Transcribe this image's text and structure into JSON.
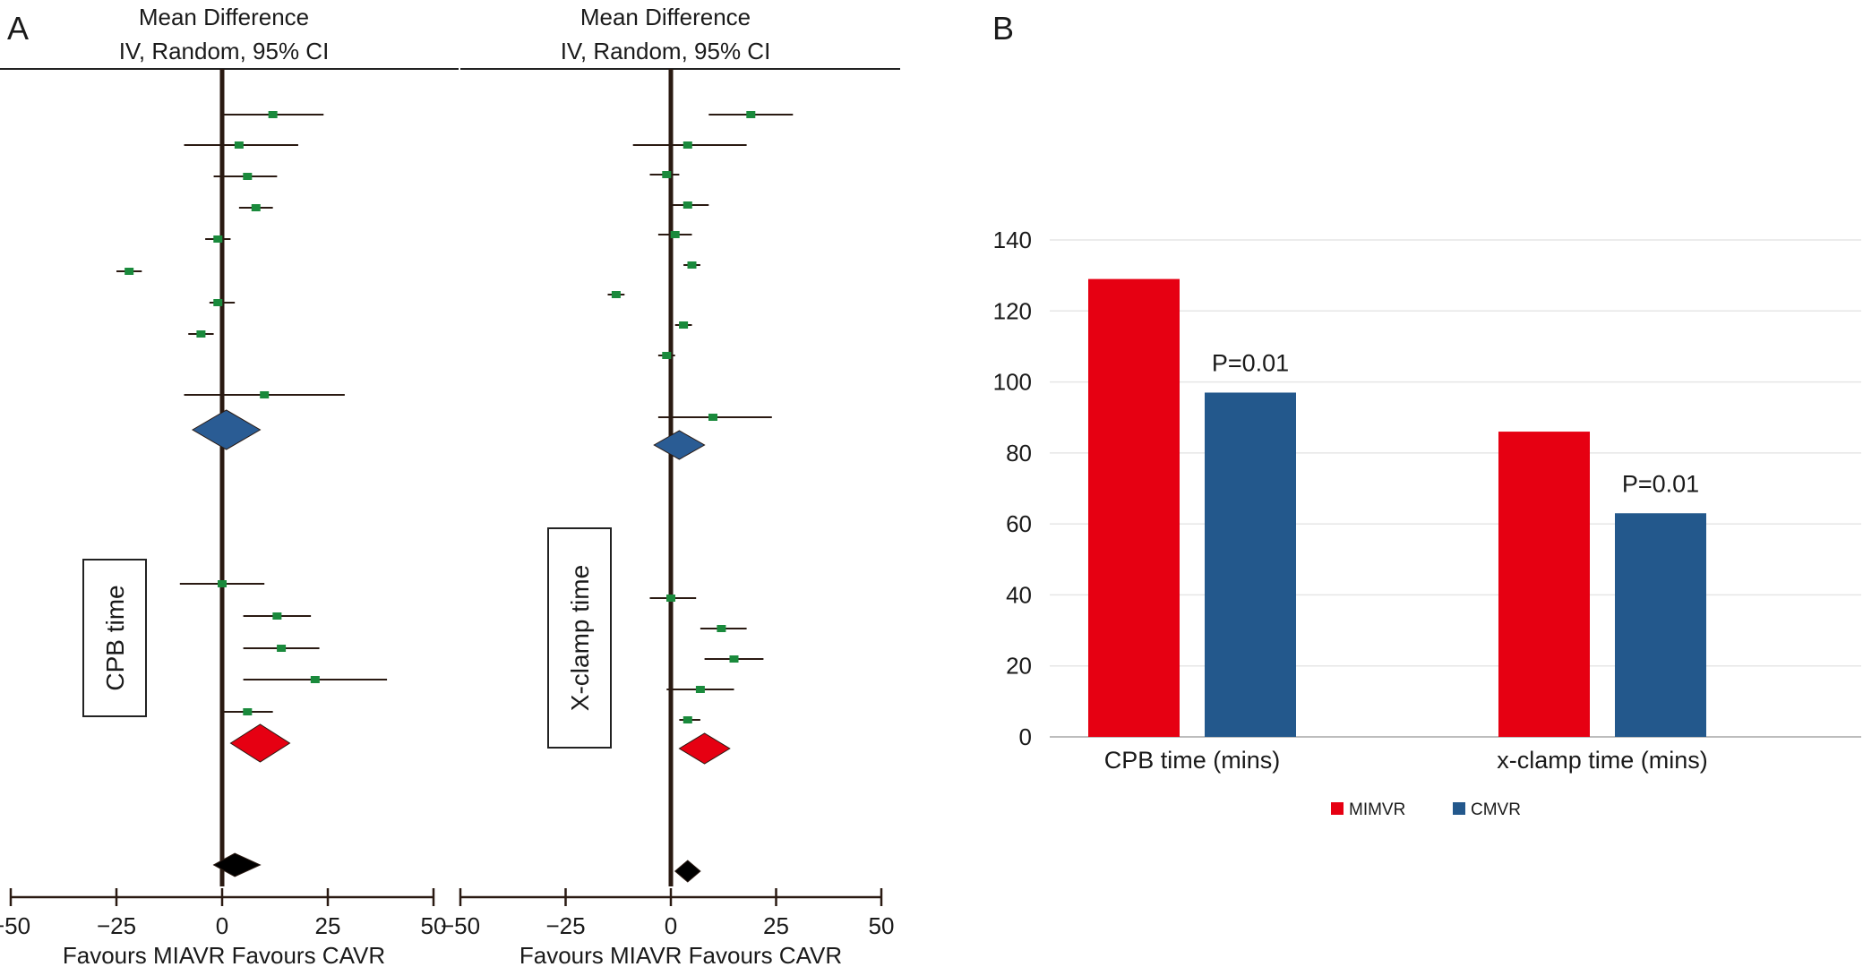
{
  "panel_a": {
    "label": "A",
    "title_line1": "Mean Difference",
    "title_line2": "IV, Random, 95% CI",
    "axis_label": "Favours MIAVR Favours CAVR",
    "colors": {
      "study": "#1a8a3c",
      "subgroup1": "#2a5c94",
      "subgroup2": "#e60012",
      "overall": "#000000"
    }
  },
  "panel_b": {
    "label": "B"
  },
  "chart_data": [
    {
      "type": "forest",
      "title": "Mean Difference IV, Random, 95% CI",
      "xlabel": "Favours MIAVR Favours CAVR",
      "xlim": [
        -50,
        50
      ],
      "xticks": [
        -50,
        -25,
        0,
        25,
        50
      ],
      "subgroup_label": "CPB time",
      "group1": [
        {
          "md": 12,
          "lo": 0,
          "hi": 24
        },
        {
          "md": 4,
          "lo": -9,
          "hi": 18
        },
        {
          "md": 6,
          "lo": -2,
          "hi": 13
        },
        {
          "md": 8,
          "lo": 4,
          "hi": 12
        },
        {
          "md": -1,
          "lo": -4,
          "hi": 2
        },
        {
          "md": -22,
          "lo": -25,
          "hi": -19
        },
        {
          "md": -1,
          "lo": -3,
          "hi": 3
        },
        {
          "md": -5,
          "lo": -8,
          "hi": -2
        },
        {
          "md": 10,
          "lo": -9,
          "hi": 29
        }
      ],
      "group1_pooled": {
        "md": 1,
        "lo": -7,
        "hi": 9
      },
      "group2": [
        {
          "md": 0,
          "lo": -10,
          "hi": 10
        },
        {
          "md": 13,
          "lo": 5,
          "hi": 21
        },
        {
          "md": 14,
          "lo": 5,
          "hi": 23
        },
        {
          "md": 22,
          "lo": 5,
          "hi": 39
        },
        {
          "md": 6,
          "lo": 0,
          "hi": 12
        }
      ],
      "group2_pooled": {
        "md": 9,
        "lo": 2,
        "hi": 16
      },
      "overall": {
        "md": 3,
        "lo": -2,
        "hi": 9
      }
    },
    {
      "type": "forest",
      "title": "Mean Difference IV, Random, 95% CI",
      "xlabel": "Favours MIAVR Favours CAVR",
      "xlim": [
        -50,
        50
      ],
      "xticks": [
        -50,
        -25,
        0,
        25,
        50
      ],
      "subgroup_label": "X-clamp time",
      "group1": [
        {
          "md": 19,
          "lo": 9,
          "hi": 29
        },
        {
          "md": 4,
          "lo": -9,
          "hi": 18
        },
        {
          "md": -1,
          "lo": -5,
          "hi": 2
        },
        {
          "md": 4,
          "lo": 0,
          "hi": 9
        },
        {
          "md": 1,
          "lo": -3,
          "hi": 5
        },
        {
          "md": 5,
          "lo": 3,
          "hi": 7
        },
        {
          "md": -13,
          "lo": -15,
          "hi": -11
        },
        {
          "md": 3,
          "lo": 1,
          "hi": 5
        },
        {
          "md": -1,
          "lo": -3,
          "hi": 1
        },
        {
          "md": 10,
          "lo": -3,
          "hi": 24
        }
      ],
      "group1_pooled": {
        "md": 2,
        "lo": -4,
        "hi": 8
      },
      "group2": [
        {
          "md": 0,
          "lo": -5,
          "hi": 6
        },
        {
          "md": 12,
          "lo": 7,
          "hi": 18
        },
        {
          "md": 15,
          "lo": 8,
          "hi": 22
        },
        {
          "md": 7,
          "lo": -1,
          "hi": 15
        },
        {
          "md": 4,
          "lo": 2,
          "hi": 7
        }
      ],
      "group2_pooled": {
        "md": 8,
        "lo": 2,
        "hi": 14
      },
      "overall": {
        "md": 4,
        "lo": 1,
        "hi": 7
      }
    },
    {
      "type": "bar",
      "categories": [
        "CPB time (mins)",
        "x-clamp time (mins)"
      ],
      "series": [
        {
          "name": "MIMVR",
          "color": "#e60012",
          "values": [
            129,
            86
          ]
        },
        {
          "name": "CMVR",
          "color": "#23588c",
          "values": [
            97,
            63
          ]
        }
      ],
      "annotations": [
        "P=0.01",
        "P=0.01"
      ],
      "ylim": [
        0,
        140
      ],
      "yticks": [
        0,
        20,
        40,
        60,
        80,
        100,
        120,
        140
      ],
      "grid": true,
      "legend": "bottom"
    }
  ]
}
